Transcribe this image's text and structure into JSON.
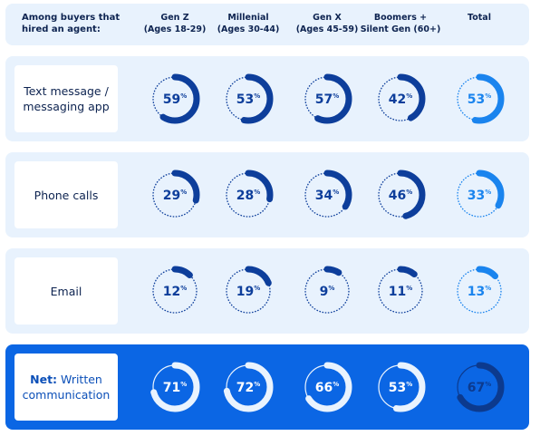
{
  "header": {
    "first_line1": "Among buyers that",
    "first_line2": "hired an agent:",
    "columns": [
      {
        "line1": "Gen Z",
        "line2": "(Ages 18-29)"
      },
      {
        "line1": "Millenial",
        "line2": "(Ages 30-44)"
      },
      {
        "line1": "Gen X",
        "line2": "(Ages 45-59)"
      },
      {
        "line1": "Boomers +",
        "line2": "Silent Gen (60+)"
      },
      {
        "line1": "Total",
        "line2": ""
      }
    ]
  },
  "rows": [
    {
      "label_line1": "Text message /",
      "label_line2": "messaging app"
    },
    {
      "label_line1": "Phone calls",
      "label_line2": ""
    },
    {
      "label_line1": "Email",
      "label_line2": ""
    },
    {
      "label_bold": "Net:",
      "label_line1": " Written",
      "label_line2": "communication"
    }
  ],
  "colors": {
    "dark": "#0d3e9b",
    "total": "#1a84ee",
    "net_light": "#e9f3fe",
    "net_total": "#0c3a8e",
    "panel": "#e8f2fd",
    "net_panel": "#0b66e4"
  },
  "chart_data": {
    "type": "table",
    "categories": [
      "Gen Z (Ages 18-29)",
      "Millenial (Ages 30-44)",
      "Gen X (Ages 45-59)",
      "Boomers + Silent Gen (60+)",
      "Total"
    ],
    "unit": "%",
    "series": [
      {
        "name": "Text message / messaging app",
        "values": [
          59,
          53,
          57,
          42,
          53
        ]
      },
      {
        "name": "Phone calls",
        "values": [
          29,
          28,
          34,
          46,
          33
        ]
      },
      {
        "name": "Email",
        "values": [
          12,
          19,
          9,
          11,
          13
        ]
      },
      {
        "name": "Net: Written communication",
        "values": [
          71,
          72,
          66,
          53,
          67
        ]
      }
    ]
  }
}
